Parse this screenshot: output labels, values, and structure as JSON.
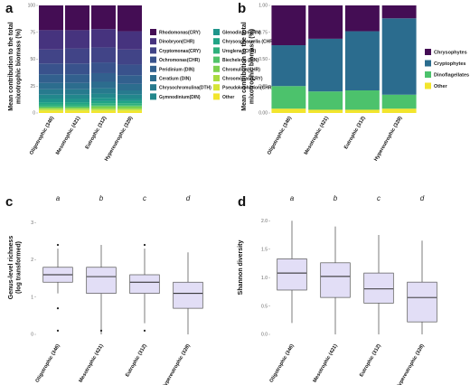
{
  "panels": {
    "a": {
      "letter": "a"
    },
    "b": {
      "letter": "b"
    },
    "c": {
      "letter": "c"
    },
    "d": {
      "letter": "d"
    }
  },
  "chart_data": [
    {
      "panel": "a",
      "type": "bar",
      "stacked": true,
      "ylabel": "Mean contribution to the total mixotrophic biomass (%)",
      "ylim": [
        0,
        100
      ],
      "yticks": [
        "0",
        "25",
        "50",
        "75",
        "100"
      ],
      "categories": [
        "Oligotrophic (346)",
        "Mesotrophic (421)",
        "Eutrophic (312)",
        "Hypereutrophic (328)"
      ],
      "legend_position": "right",
      "series": [
        {
          "name": "Other",
          "color": "#f2e52d",
          "values": [
            2,
            2,
            2,
            2
          ]
        },
        {
          "name": "Pseudokephyrion(CHR)",
          "color": "#d6e537",
          "values": [
            1,
            1,
            1,
            1
          ]
        },
        {
          "name": "Chroomonas(CRY)",
          "color": "#a9db3f",
          "values": [
            1,
            1,
            1,
            1
          ]
        },
        {
          "name": "Chromulina(CHR)",
          "color": "#7bd04f",
          "values": [
            1,
            1,
            2,
            2
          ]
        },
        {
          "name": "Biecheleria (DIN)",
          "color": "#50c36a",
          "values": [
            1,
            1,
            1,
            1
          ]
        },
        {
          "name": "Uroglena (CHR)",
          "color": "#2fb07c",
          "values": [
            2,
            2,
            2,
            2
          ]
        },
        {
          "name": "Chrysosphaerella (CHR)",
          "color": "#21a485",
          "values": [
            2,
            2,
            2,
            2
          ]
        },
        {
          "name": "Glenodinium(DIN)",
          "color": "#1f958b",
          "values": [
            3,
            3,
            3,
            2
          ]
        },
        {
          "name": "Gymnodinium(DIN)",
          "color": "#22878c",
          "values": [
            4,
            4,
            4,
            4
          ]
        },
        {
          "name": "Chrysochromulina(DTH)",
          "color": "#277a8e",
          "values": [
            5,
            5,
            5,
            4
          ]
        },
        {
          "name": "Ceratium (DIN)",
          "color": "#2c6d8e",
          "values": [
            6,
            6,
            6,
            6
          ]
        },
        {
          "name": "Peridinium (DIN)",
          "color": "#32608e",
          "values": [
            8,
            8,
            8,
            8
          ]
        },
        {
          "name": "Ochromonas(CHR)",
          "color": "#39528c",
          "values": [
            10,
            10,
            10,
            10
          ]
        },
        {
          "name": "Cryptomonas(CRY)",
          "color": "#414487",
          "values": [
            13,
            14,
            14,
            14
          ]
        },
        {
          "name": "Dinobryon(CHR)",
          "color": "#46337e",
          "values": [
            18,
            17,
            17,
            17
          ]
        },
        {
          "name": "Rhodomonas(CRY)",
          "color": "#440d54",
          "values": [
            23,
            23,
            22,
            24
          ]
        }
      ]
    },
    {
      "panel": "b",
      "type": "bar",
      "stacked": true,
      "ylabel": "Mean contribution to the total mixotrophic biomass (%)",
      "ylim": [
        0,
        1
      ],
      "yticks": [
        "0.00",
        "0.25",
        "0.50",
        "0.75",
        "1.00"
      ],
      "categories": [
        "Oligotrophic (346)",
        "Mesotrophic (421)",
        "Eutrophic (312)",
        "Hypereutrophic (328)"
      ],
      "legend_position": "right",
      "series": [
        {
          "name": "Other",
          "color": "#f2e52d",
          "values": [
            0.04,
            0.03,
            0.03,
            0.04
          ]
        },
        {
          "name": "Dinoflagellates",
          "color": "#4cc26c",
          "values": [
            0.21,
            0.17,
            0.18,
            0.13
          ]
        },
        {
          "name": "Cryptophytes",
          "color": "#2b6c8e",
          "values": [
            0.38,
            0.49,
            0.55,
            0.71
          ]
        },
        {
          "name": "Chrysophytes",
          "color": "#440d54",
          "values": [
            0.37,
            0.31,
            0.24,
            0.12
          ]
        }
      ]
    },
    {
      "panel": "c",
      "type": "box",
      "ylabel": "Genus-level richness (log transformed)",
      "ylim": [
        0,
        3.2
      ],
      "yticks": [
        "0",
        "1",
        "2",
        "3"
      ],
      "categories": [
        "Oligotrophic (346)",
        "Mesotrophic (421)",
        "Eutrophic (312)",
        "Hypereutrophic (328)"
      ],
      "group_letters": [
        "a",
        "b",
        "c",
        "d"
      ],
      "box_color": "#e2def6",
      "boxes": [
        {
          "min": 1.1,
          "q1": 1.4,
          "median": 1.6,
          "q3": 1.8,
          "max": 2.3,
          "outliers": [
            2.4,
            0.7,
            0.1
          ]
        },
        {
          "min": 0.0,
          "q1": 1.1,
          "median": 1.55,
          "q3": 1.8,
          "max": 2.4,
          "outliers": [
            0.1
          ]
        },
        {
          "min": 0.3,
          "q1": 1.1,
          "median": 1.4,
          "q3": 1.6,
          "max": 2.3,
          "outliers": [
            2.4,
            0.1
          ]
        },
        {
          "min": 0.0,
          "q1": 0.7,
          "median": 1.1,
          "q3": 1.4,
          "max": 2.2,
          "outliers": []
        }
      ]
    },
    {
      "panel": "d",
      "type": "box",
      "ylabel": "Shannon diversity",
      "ylim": [
        0,
        2.1
      ],
      "yticks": [
        "0.0",
        "0.5",
        "1.0",
        "1.5",
        "2.0"
      ],
      "categories": [
        "Oligotrophic (346)",
        "Mesotrophic (421)",
        "Eutrophic (312)",
        "Hypereutrophic (328)"
      ],
      "group_letters": [
        "a",
        "b",
        "c",
        "d"
      ],
      "box_color": "#e2def6",
      "boxes": [
        {
          "min": 0.2,
          "q1": 0.78,
          "median": 1.08,
          "q3": 1.33,
          "max": 2.0,
          "outliers": []
        },
        {
          "min": 0.0,
          "q1": 0.65,
          "median": 1.02,
          "q3": 1.26,
          "max": 1.9,
          "outliers": []
        },
        {
          "min": 0.0,
          "q1": 0.55,
          "median": 0.8,
          "q3": 1.08,
          "max": 1.75,
          "outliers": []
        },
        {
          "min": 0.0,
          "q1": 0.22,
          "median": 0.65,
          "q3": 0.92,
          "max": 1.65,
          "outliers": []
        }
      ]
    }
  ]
}
